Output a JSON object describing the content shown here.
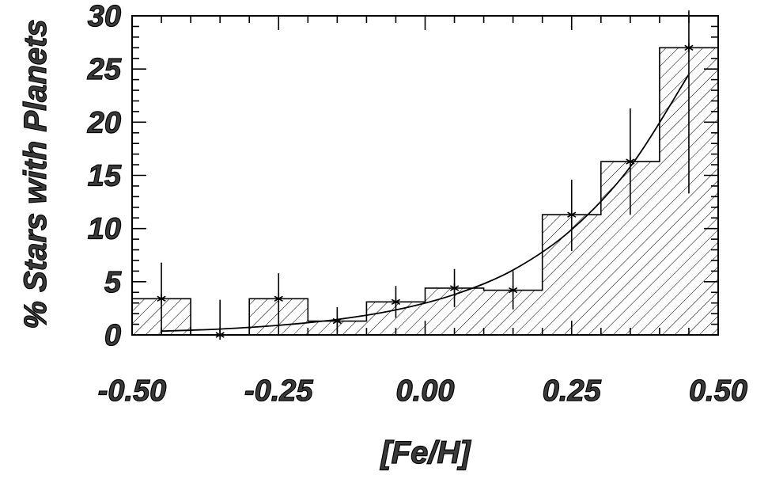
{
  "chart_data": {
    "type": "bar",
    "title": "",
    "xlabel": "[Fe/H]",
    "ylabel": "% Stars with Planets",
    "xlim": [
      -0.5,
      0.5
    ],
    "ylim": [
      0,
      30
    ],
    "x_ticks": [
      {
        "value": -0.5,
        "label": "-0.50"
      },
      {
        "value": -0.25,
        "label": "-0.25"
      },
      {
        "value": 0.0,
        "label": "0.00"
      },
      {
        "value": 0.25,
        "label": "0.25"
      },
      {
        "value": 0.5,
        "label": "0.50"
      }
    ],
    "y_ticks": [
      {
        "value": 0,
        "label": "0"
      },
      {
        "value": 5,
        "label": "5"
      },
      {
        "value": 10,
        "label": "10"
      },
      {
        "value": 15,
        "label": "15"
      },
      {
        "value": 20,
        "label": "20"
      },
      {
        "value": 25,
        "label": "25"
      },
      {
        "value": 30,
        "label": "30"
      }
    ],
    "grid": false,
    "hatch": "diagonal",
    "bins": [
      {
        "x0": -0.5,
        "x1": -0.4,
        "center": -0.45,
        "value": 3.4,
        "err_low": 0,
        "err_high": 6.8
      },
      {
        "x0": -0.4,
        "x1": -0.3,
        "center": -0.35,
        "value": 0.0,
        "err_low": 0,
        "err_high": 3.3
      },
      {
        "x0": -0.3,
        "x1": -0.2,
        "center": -0.25,
        "value": 3.4,
        "err_low": 1.0,
        "err_high": 5.8
      },
      {
        "x0": -0.2,
        "x1": -0.1,
        "center": -0.15,
        "value": 1.3,
        "err_low": 0.2,
        "err_high": 2.6
      },
      {
        "x0": -0.1,
        "x1": 0.0,
        "center": -0.05,
        "value": 3.1,
        "err_low": 1.6,
        "err_high": 4.6
      },
      {
        "x0": 0.0,
        "x1": 0.1,
        "center": 0.05,
        "value": 4.4,
        "err_low": 2.6,
        "err_high": 6.2
      },
      {
        "x0": 0.1,
        "x1": 0.2,
        "center": 0.15,
        "value": 4.2,
        "err_low": 2.4,
        "err_high": 6.0
      },
      {
        "x0": 0.2,
        "x1": 0.3,
        "center": 0.25,
        "value": 11.3,
        "err_low": 7.9,
        "err_high": 14.6
      },
      {
        "x0": 0.3,
        "x1": 0.4,
        "center": 0.35,
        "value": 16.3,
        "err_low": 11.3,
        "err_high": 21.3
      },
      {
        "x0": 0.4,
        "x1": 0.5,
        "center": 0.45,
        "value": 27.0,
        "err_low": 13.3,
        "err_high": 30.5
      }
    ],
    "fit_curve": {
      "x": [
        -0.45,
        -0.35,
        -0.25,
        -0.15,
        -0.05,
        0.05,
        0.15,
        0.25,
        0.35,
        0.45
      ],
      "y": [
        0.35,
        0.55,
        0.9,
        1.45,
        2.35,
        3.8,
        6.1,
        9.9,
        15.8,
        24.5
      ]
    }
  }
}
